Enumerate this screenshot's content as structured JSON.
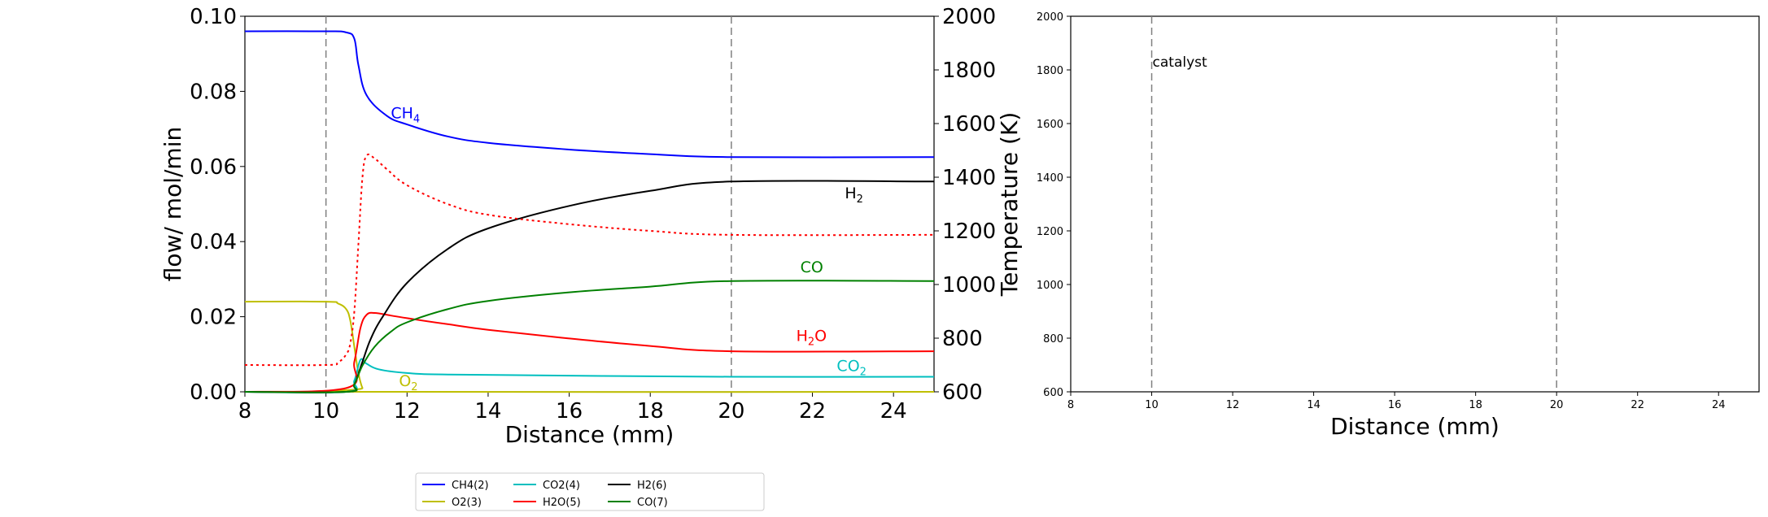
{
  "chart_data": [
    {
      "type": "line",
      "xlabel": "Distance (mm)",
      "ylabel": "flow/ mol/min",
      "y2label": "Temperature (K)",
      "xlim": [
        8,
        25
      ],
      "ylim": [
        0,
        0.1
      ],
      "y2lim": [
        600,
        2000
      ],
      "xticks": [
        "8",
        "10",
        "12",
        "14",
        "16",
        "18",
        "20",
        "22",
        "24"
      ],
      "yticks": [
        "0.00",
        "0.02",
        "0.04",
        "0.06",
        "0.08",
        "0.10"
      ],
      "y2ticks": [
        "600",
        "800",
        "1000",
        "1200",
        "1400",
        "1600",
        "1800",
        "2000"
      ],
      "vlines": [
        10,
        20
      ],
      "grid": false,
      "legend": {
        "placement": "bottom-center",
        "entries": [
          {
            "label": "CH4(2)",
            "color": "#0000ff"
          },
          {
            "label": "O2(3)",
            "color": "#bfbf00"
          },
          {
            "label": "CO2(4)",
            "color": "#00bfbf"
          },
          {
            "label": "H2O(5)",
            "color": "#ff0000"
          },
          {
            "label": "H2(6)",
            "color": "#000000"
          },
          {
            "label": "CO(7)",
            "color": "#008000"
          }
        ]
      },
      "series": [
        {
          "name": "CH4(2)",
          "label": "CH4",
          "color": "#0000ff",
          "label_at": [
            11.6,
            0.0728
          ],
          "x": [
            8,
            10,
            10.5,
            10.7,
            10.8,
            11.0,
            11.5,
            12,
            13,
            14,
            16,
            18,
            20,
            25
          ],
          "y": [
            0.096,
            0.096,
            0.0957,
            0.094,
            0.087,
            0.079,
            0.0735,
            0.0712,
            0.068,
            0.0663,
            0.0645,
            0.0633,
            0.0625,
            0.0625
          ]
        },
        {
          "name": "O2(3)",
          "label": "O2",
          "color": "#bfbf00",
          "label_at": [
            11.8,
            0.0015
          ],
          "x": [
            8,
            10,
            10.3,
            10.5,
            10.6,
            10.7,
            10.8,
            10.9,
            11.0,
            25
          ],
          "y": [
            0.024,
            0.024,
            0.0235,
            0.022,
            0.019,
            0.012,
            0.005,
            0.001,
            0.0,
            0.0
          ]
        },
        {
          "name": "CO2(4)",
          "label": "CO2",
          "color": "#00bfbf",
          "label_at": [
            22.6,
            0.0055
          ],
          "x": [
            8,
            10.5,
            10.7,
            10.85,
            11.0,
            11.3,
            12,
            13,
            16,
            20,
            25
          ],
          "y": [
            0.0,
            0.0,
            0.003,
            0.0085,
            0.0075,
            0.006,
            0.005,
            0.0046,
            0.0043,
            0.004,
            0.004
          ]
        },
        {
          "name": "H2O(5)",
          "label": "H2O",
          "color": "#ff0000",
          "label_at": [
            21.6,
            0.0135
          ],
          "x": [
            8,
            10.5,
            10.7,
            10.85,
            11.0,
            11.2,
            11.6,
            12,
            13,
            14,
            16,
            18,
            20,
            25
          ],
          "y": [
            0.0,
            0.001,
            0.008,
            0.017,
            0.0205,
            0.021,
            0.0203,
            0.0196,
            0.018,
            0.0165,
            0.0142,
            0.0122,
            0.0108,
            0.0108
          ]
        },
        {
          "name": "H2(6)",
          "label": "H2",
          "color": "#000000",
          "label_at": [
            22.8,
            0.0515
          ],
          "x": [
            8,
            10.5,
            10.7,
            10.9,
            11.1,
            11.4,
            12,
            13,
            14,
            16,
            18,
            20,
            25
          ],
          "y": [
            0.0,
            0.0,
            0.002,
            0.008,
            0.014,
            0.02,
            0.029,
            0.038,
            0.0435,
            0.0495,
            0.0535,
            0.056,
            0.056
          ]
        },
        {
          "name": "CO(7)",
          "label": "CO",
          "color": "#008000",
          "label_at": [
            21.7,
            0.0318
          ],
          "x": [
            8,
            10.5,
            10.7,
            10.9,
            11.2,
            11.6,
            12,
            13,
            14,
            16,
            18,
            20,
            25
          ],
          "y": [
            0.0,
            0.0,
            0.002,
            0.007,
            0.012,
            0.016,
            0.0185,
            0.022,
            0.0242,
            0.0265,
            0.028,
            0.0295,
            0.0295
          ]
        },
        {
          "name": "Temperature",
          "axis": "y2",
          "dashed": true,
          "color": "#ff0000",
          "x": [
            8,
            10,
            10.3,
            10.5,
            10.6,
            10.7,
            10.8,
            10.9,
            11.0,
            11.2,
            11.5,
            12,
            13,
            14,
            16,
            18,
            20,
            25
          ],
          "y": [
            700,
            700,
            710,
            740,
            780,
            900,
            1150,
            1400,
            1480,
            1470,
            1430,
            1370,
            1300,
            1260,
            1225,
            1200,
            1185,
            1185
          ]
        }
      ]
    },
    {
      "type": "line",
      "xlabel": "Distance (mm)",
      "ylabel": "",
      "xlim": [
        8,
        25
      ],
      "ylim": [
        600,
        2000
      ],
      "xticks": [
        "8",
        "10",
        "12",
        "14",
        "16",
        "18",
        "20",
        "22",
        "24"
      ],
      "yticks": [
        "600",
        "800",
        "1000",
        "1200",
        "1400",
        "1600",
        "1800",
        "2000"
      ],
      "vlines": [
        10,
        20
      ],
      "annotations": [
        {
          "text": "catalyst",
          "x": 10,
          "y": 1830
        }
      ],
      "grid": false,
      "series": []
    }
  ]
}
